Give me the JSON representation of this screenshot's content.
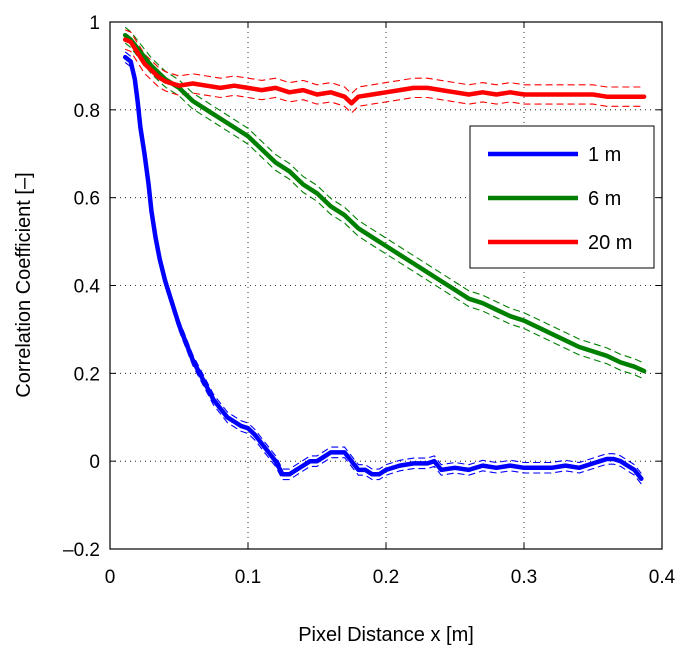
{
  "chart_data": {
    "type": "line",
    "xlabel": "Pixel Distance  x  [m]",
    "ylabel": "Correlation Coefficient   [–]",
    "xlim": [
      0,
      0.4
    ],
    "ylim": [
      -0.2,
      1
    ],
    "xticks": [
      0,
      0.1,
      0.2,
      0.3,
      0.4
    ],
    "xtick_labels": [
      "0",
      "0.1",
      "0.2",
      "0.3",
      "0.4"
    ],
    "yticks": [
      -0.2,
      0,
      0.2,
      0.4,
      0.6,
      0.8,
      1
    ],
    "ytick_labels": [
      "–0.2",
      "0",
      "0.2",
      "0.4",
      "0.6",
      "0.8",
      "1"
    ],
    "grid": true,
    "legend_position": "right",
    "series": [
      {
        "name": "1 m",
        "color": "#0000ff",
        "x": [
          0.011,
          0.015,
          0.018,
          0.02,
          0.022,
          0.025,
          0.028,
          0.03,
          0.033,
          0.036,
          0.04,
          0.045,
          0.05,
          0.055,
          0.06,
          0.065,
          0.07,
          0.075,
          0.08,
          0.085,
          0.09,
          0.095,
          0.1,
          0.105,
          0.11,
          0.115,
          0.12,
          0.125,
          0.13,
          0.135,
          0.14,
          0.145,
          0.15,
          0.155,
          0.16,
          0.165,
          0.17,
          0.175,
          0.18,
          0.185,
          0.19,
          0.195,
          0.2,
          0.21,
          0.22,
          0.23,
          0.235,
          0.24,
          0.25,
          0.26,
          0.27,
          0.28,
          0.29,
          0.3,
          0.31,
          0.32,
          0.33,
          0.34,
          0.35,
          0.355,
          0.36,
          0.365,
          0.37,
          0.375,
          0.38,
          0.385
        ],
        "y": [
          0.92,
          0.91,
          0.87,
          0.82,
          0.76,
          0.7,
          0.63,
          0.57,
          0.51,
          0.46,
          0.41,
          0.36,
          0.31,
          0.27,
          0.23,
          0.2,
          0.17,
          0.14,
          0.12,
          0.1,
          0.09,
          0.08,
          0.075,
          0.06,
          0.04,
          0.02,
          0.0,
          -0.03,
          -0.03,
          -0.02,
          -0.01,
          0.0,
          0.0,
          0.01,
          0.02,
          0.02,
          0.02,
          0.0,
          -0.02,
          -0.02,
          -0.03,
          -0.03,
          -0.02,
          -0.01,
          -0.005,
          -0.005,
          0.0,
          -0.02,
          -0.015,
          -0.02,
          -0.01,
          -0.015,
          -0.01,
          -0.015,
          -0.015,
          -0.015,
          -0.01,
          -0.015,
          -0.005,
          0.0,
          0.005,
          0.005,
          0.0,
          -0.01,
          -0.02,
          -0.04
        ],
        "band_halfwidth": 0.012
      },
      {
        "name": "6 m",
        "color": "#008000",
        "x": [
          0.011,
          0.015,
          0.02,
          0.025,
          0.03,
          0.04,
          0.05,
          0.06,
          0.07,
          0.08,
          0.09,
          0.1,
          0.11,
          0.12,
          0.13,
          0.14,
          0.15,
          0.16,
          0.17,
          0.18,
          0.19,
          0.2,
          0.21,
          0.22,
          0.23,
          0.24,
          0.25,
          0.26,
          0.27,
          0.28,
          0.29,
          0.3,
          0.31,
          0.32,
          0.33,
          0.34,
          0.35,
          0.36,
          0.37,
          0.38,
          0.387
        ],
        "y": [
          0.97,
          0.96,
          0.94,
          0.92,
          0.9,
          0.87,
          0.85,
          0.82,
          0.8,
          0.78,
          0.76,
          0.74,
          0.71,
          0.68,
          0.66,
          0.63,
          0.61,
          0.58,
          0.56,
          0.53,
          0.51,
          0.49,
          0.47,
          0.45,
          0.43,
          0.41,
          0.39,
          0.37,
          0.36,
          0.345,
          0.33,
          0.32,
          0.305,
          0.29,
          0.275,
          0.26,
          0.25,
          0.24,
          0.225,
          0.215,
          0.205
        ],
        "band_halfwidth": 0.018
      },
      {
        "name": "20 m",
        "color": "#ff0000",
        "x": [
          0.011,
          0.015,
          0.02,
          0.025,
          0.03,
          0.035,
          0.04,
          0.05,
          0.06,
          0.07,
          0.08,
          0.09,
          0.1,
          0.11,
          0.12,
          0.13,
          0.14,
          0.15,
          0.16,
          0.17,
          0.175,
          0.18,
          0.19,
          0.2,
          0.21,
          0.22,
          0.23,
          0.24,
          0.25,
          0.26,
          0.27,
          0.28,
          0.29,
          0.3,
          0.31,
          0.32,
          0.33,
          0.34,
          0.35,
          0.36,
          0.37,
          0.38,
          0.387
        ],
        "y": [
          0.96,
          0.955,
          0.93,
          0.905,
          0.89,
          0.875,
          0.865,
          0.855,
          0.86,
          0.855,
          0.85,
          0.855,
          0.85,
          0.845,
          0.85,
          0.84,
          0.845,
          0.835,
          0.84,
          0.83,
          0.815,
          0.83,
          0.835,
          0.84,
          0.845,
          0.85,
          0.85,
          0.845,
          0.84,
          0.835,
          0.84,
          0.835,
          0.84,
          0.835,
          0.835,
          0.835,
          0.835,
          0.835,
          0.835,
          0.83,
          0.83,
          0.83,
          0.83
        ],
        "band_halfwidth": 0.022
      }
    ]
  }
}
